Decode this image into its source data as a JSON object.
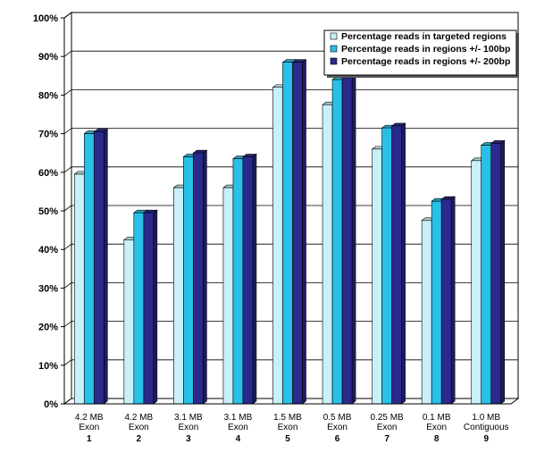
{
  "chart_data": {
    "type": "bar",
    "title": "",
    "xlabel": "",
    "ylabel": "",
    "ylim": [
      0,
      100
    ],
    "y_ticks": [
      "0%",
      "10%",
      "20%",
      "30%",
      "40%",
      "50%",
      "60%",
      "70%",
      "80%",
      "90%",
      "100%"
    ],
    "categories": [
      {
        "line1": "4.2 MB",
        "line2": "Exon",
        "num": "1"
      },
      {
        "line1": "4.2 MB",
        "line2": "Exon",
        "num": "2"
      },
      {
        "line1": "3.1 MB",
        "line2": "Exon",
        "num": "3"
      },
      {
        "line1": "3.1 MB",
        "line2": "Exon",
        "num": "4"
      },
      {
        "line1": "1.5 MB",
        "line2": "Exon",
        "num": "5"
      },
      {
        "line1": "0.5 MB",
        "line2": "Exon",
        "num": "6"
      },
      {
        "line1": "0.25 MB",
        "line2": "Exon",
        "num": "7"
      },
      {
        "line1": "0.1 MB",
        "line2": "Exon",
        "num": "8"
      },
      {
        "line1": "1.0 MB",
        "line2": "Contiguous",
        "num": "9"
      }
    ],
    "series": [
      {
        "name": "Percentage reads in targeted regions",
        "color": "#c8f0f8",
        "values": [
          59.5,
          42.5,
          56,
          56,
          82,
          77.5,
          66,
          47.5,
          63
        ]
      },
      {
        "name": "Percentage reads in regions +/- 100bp",
        "color": "#29c0e8",
        "values": [
          70,
          49.5,
          64,
          63.5,
          88.5,
          84,
          71.5,
          52.5,
          67
        ]
      },
      {
        "name": "Percentage reads in regions +/- 200bp",
        "color": "#2a2a8c",
        "values": [
          70.5,
          49.5,
          65,
          64,
          88.5,
          84.5,
          72,
          53,
          67.5
        ]
      }
    ],
    "legend_position": "top-right",
    "grid": true
  }
}
